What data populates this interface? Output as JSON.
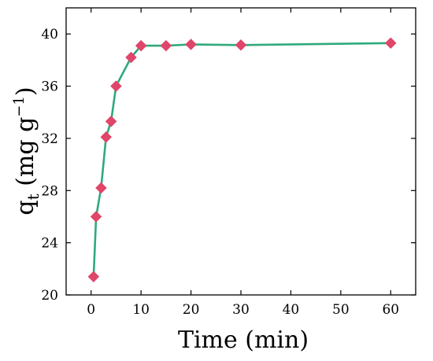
{
  "chart_data": {
    "type": "line",
    "xlabel": "Time (min)",
    "ylabel": {
      "main": "q",
      "sub": "t",
      "unit_open": " (mg g",
      "unit_sup": "−1",
      "unit_close": ")"
    },
    "xlim": [
      -5,
      65
    ],
    "ylim": [
      20,
      42
    ],
    "xticks": [
      0,
      10,
      20,
      30,
      40,
      50,
      60
    ],
    "yticks": [
      20,
      24,
      28,
      32,
      36,
      40
    ],
    "grid": false,
    "legend": "none",
    "series": [
      {
        "x": [
          0.5,
          1,
          2,
          3,
          4,
          5,
          8,
          10,
          15,
          20,
          30,
          60
        ],
        "y": [
          21.4,
          26.0,
          28.2,
          32.1,
          33.3,
          36.0,
          38.2,
          39.1,
          39.1,
          39.2,
          39.15,
          39.3
        ],
        "line_color": "#2eaa7c",
        "marker_color": "#e0456a",
        "marker": "diamond"
      }
    ]
  }
}
